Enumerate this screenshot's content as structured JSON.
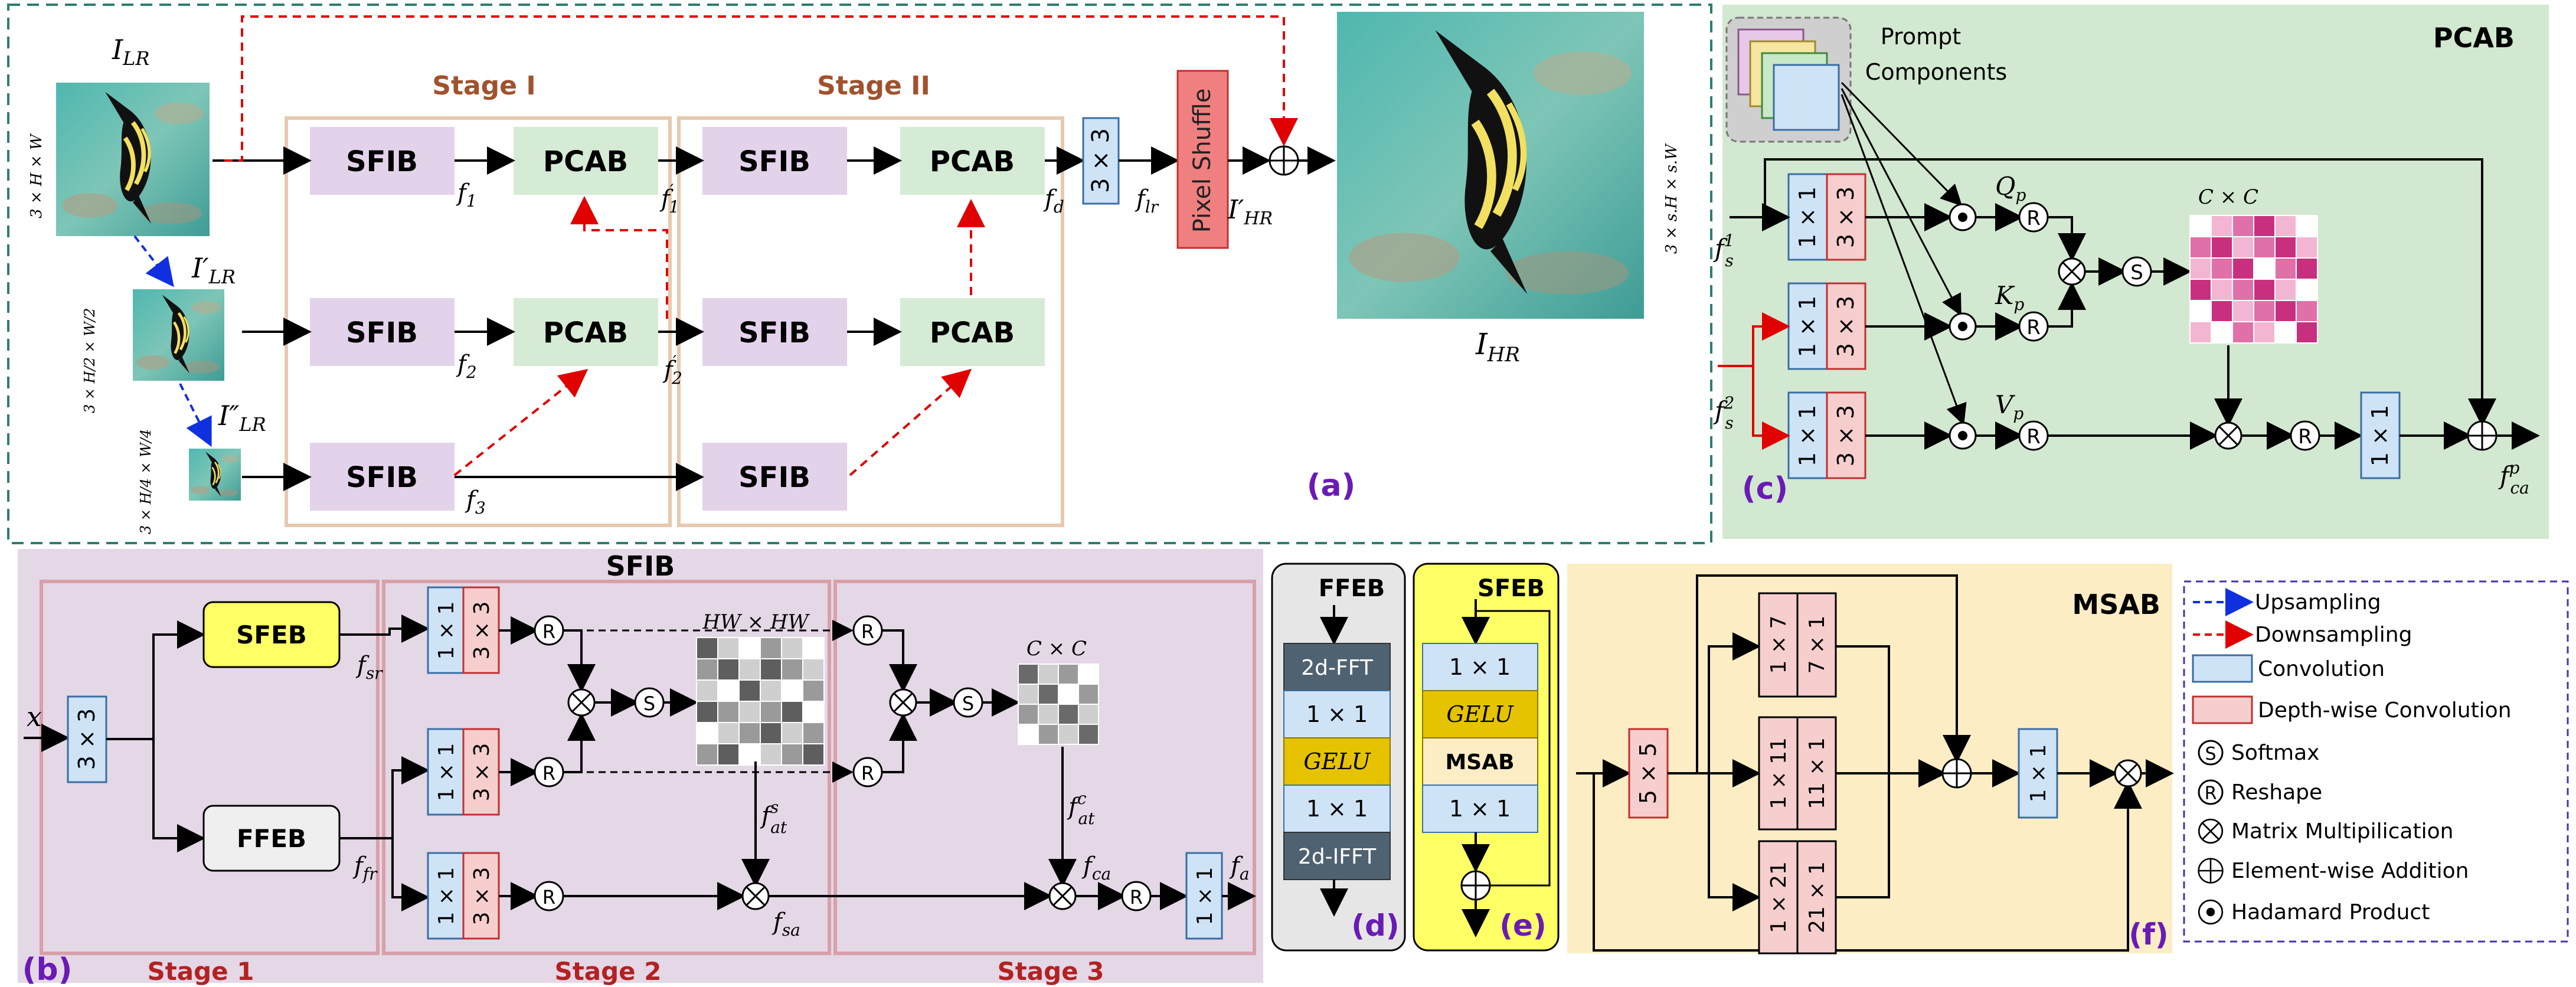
{
  "panel_a": {
    "label": "(a)",
    "stage1": "Stage I",
    "stage2": "Stage II",
    "sfib": "SFIB",
    "pcab": "PCAB",
    "conv3": "3 × 3",
    "pixel_shuffle": "Pixel Shuffle",
    "i_lr": "I",
    "i_lr_sub": "LR",
    "i_lr1": "I′",
    "i_lr1_sub": "LR",
    "i_lr2": "I″",
    "i_lr2_sub": "LR",
    "i_hr": "I",
    "i_hr_sub": "HR",
    "i_hr_prime": "I′",
    "i_hr_prime_sub": "HR",
    "dim1": "3 × H × W",
    "dim2": "3 × H/2 × W/2",
    "dim3": "3 × H/4 × W/4",
    "f1": "f1",
    "f2": "f2",
    "f3": "f3",
    "f1p": "f′1",
    "f2p": "f′2",
    "fd": "fd",
    "flr": "flr"
  },
  "panel_b": {
    "title": "SFIB",
    "label": "(b)",
    "stage1": "Stage 1",
    "stage2": "Stage 2",
    "stage3": "Stage 3",
    "sfeb": "SFEB",
    "ffeb": "FFEB",
    "x": "x",
    "fsr": "fsr",
    "ffr": "ffr",
    "fsat": "f s at",
    "fcat": "f c at",
    "fsa": "fsa",
    "fca": "fca",
    "fa": "fa",
    "hw": "HW × HW",
    "cc": "C × C",
    "conv11": "1 × 1",
    "conv33": "3 × 3"
  },
  "panel_c": {
    "title": "PCAB",
    "label": "(c)",
    "prompt": "Prompt Components",
    "qp": "Qp",
    "kp": "Kp",
    "vp": "Vp",
    "cc": "C × C",
    "fs1": "f1s",
    "fs2": "f2s",
    "fca": "fpca",
    "dim": "3 × s.H × s.W"
  },
  "panel_d": {
    "title": "FFEB",
    "label": "(d)",
    "items": [
      "2d-FFT",
      "1 × 1",
      "GELU",
      "1 × 1",
      "2d-IFFT"
    ]
  },
  "panel_e": {
    "title": "SFEB",
    "label": "(e)",
    "items": [
      "1 × 1",
      "GELU",
      "MSAB",
      "1 × 1"
    ]
  },
  "panel_f": {
    "title": "MSAB",
    "label": "(f)",
    "conv55": "5 × 5",
    "k17": "1 × 7",
    "k71": "7 × 1",
    "k111": "1 × 11",
    "k1111": "11 × 1",
    "k121": "1 × 21",
    "k211": "21 × 1",
    "conv11": "1 × 1"
  },
  "legend": {
    "items": [
      {
        "symbol": "up",
        "label": "Upsampling"
      },
      {
        "symbol": "down",
        "label": "Downsampling"
      },
      {
        "symbol": "conv",
        "label": "Convolution"
      },
      {
        "symbol": "dw",
        "label": "Depth-wise Convolution"
      },
      {
        "symbol": "S",
        "label": "Softmax"
      },
      {
        "symbol": "R",
        "label": "Reshape"
      },
      {
        "symbol": "mul",
        "label": "Matrix Multipilication"
      },
      {
        "symbol": "add",
        "label": "Element-wise Addition"
      },
      {
        "symbol": "had",
        "label": "Hadamard Product"
      }
    ]
  },
  "colors": {
    "sfib_fill": "#E3D3EA",
    "pcab_fill": "#D5EBD5",
    "pcab_bg": "#D2E8D0",
    "sfib_bg": "#E4D7E6",
    "ffeb_bg": "#E6E6E6",
    "sfeb_bg": "#FFFF99",
    "msab_bg": "#FCEDC4",
    "conv": "#CFE3F7",
    "dw": "#F6CECE",
    "stage_text": "#A0522D",
    "stage_red": "#B22222",
    "label_purple": "#6A1BB5",
    "dashed_teal": "#2E7D6E",
    "legend_border": "#4B2FA8"
  }
}
